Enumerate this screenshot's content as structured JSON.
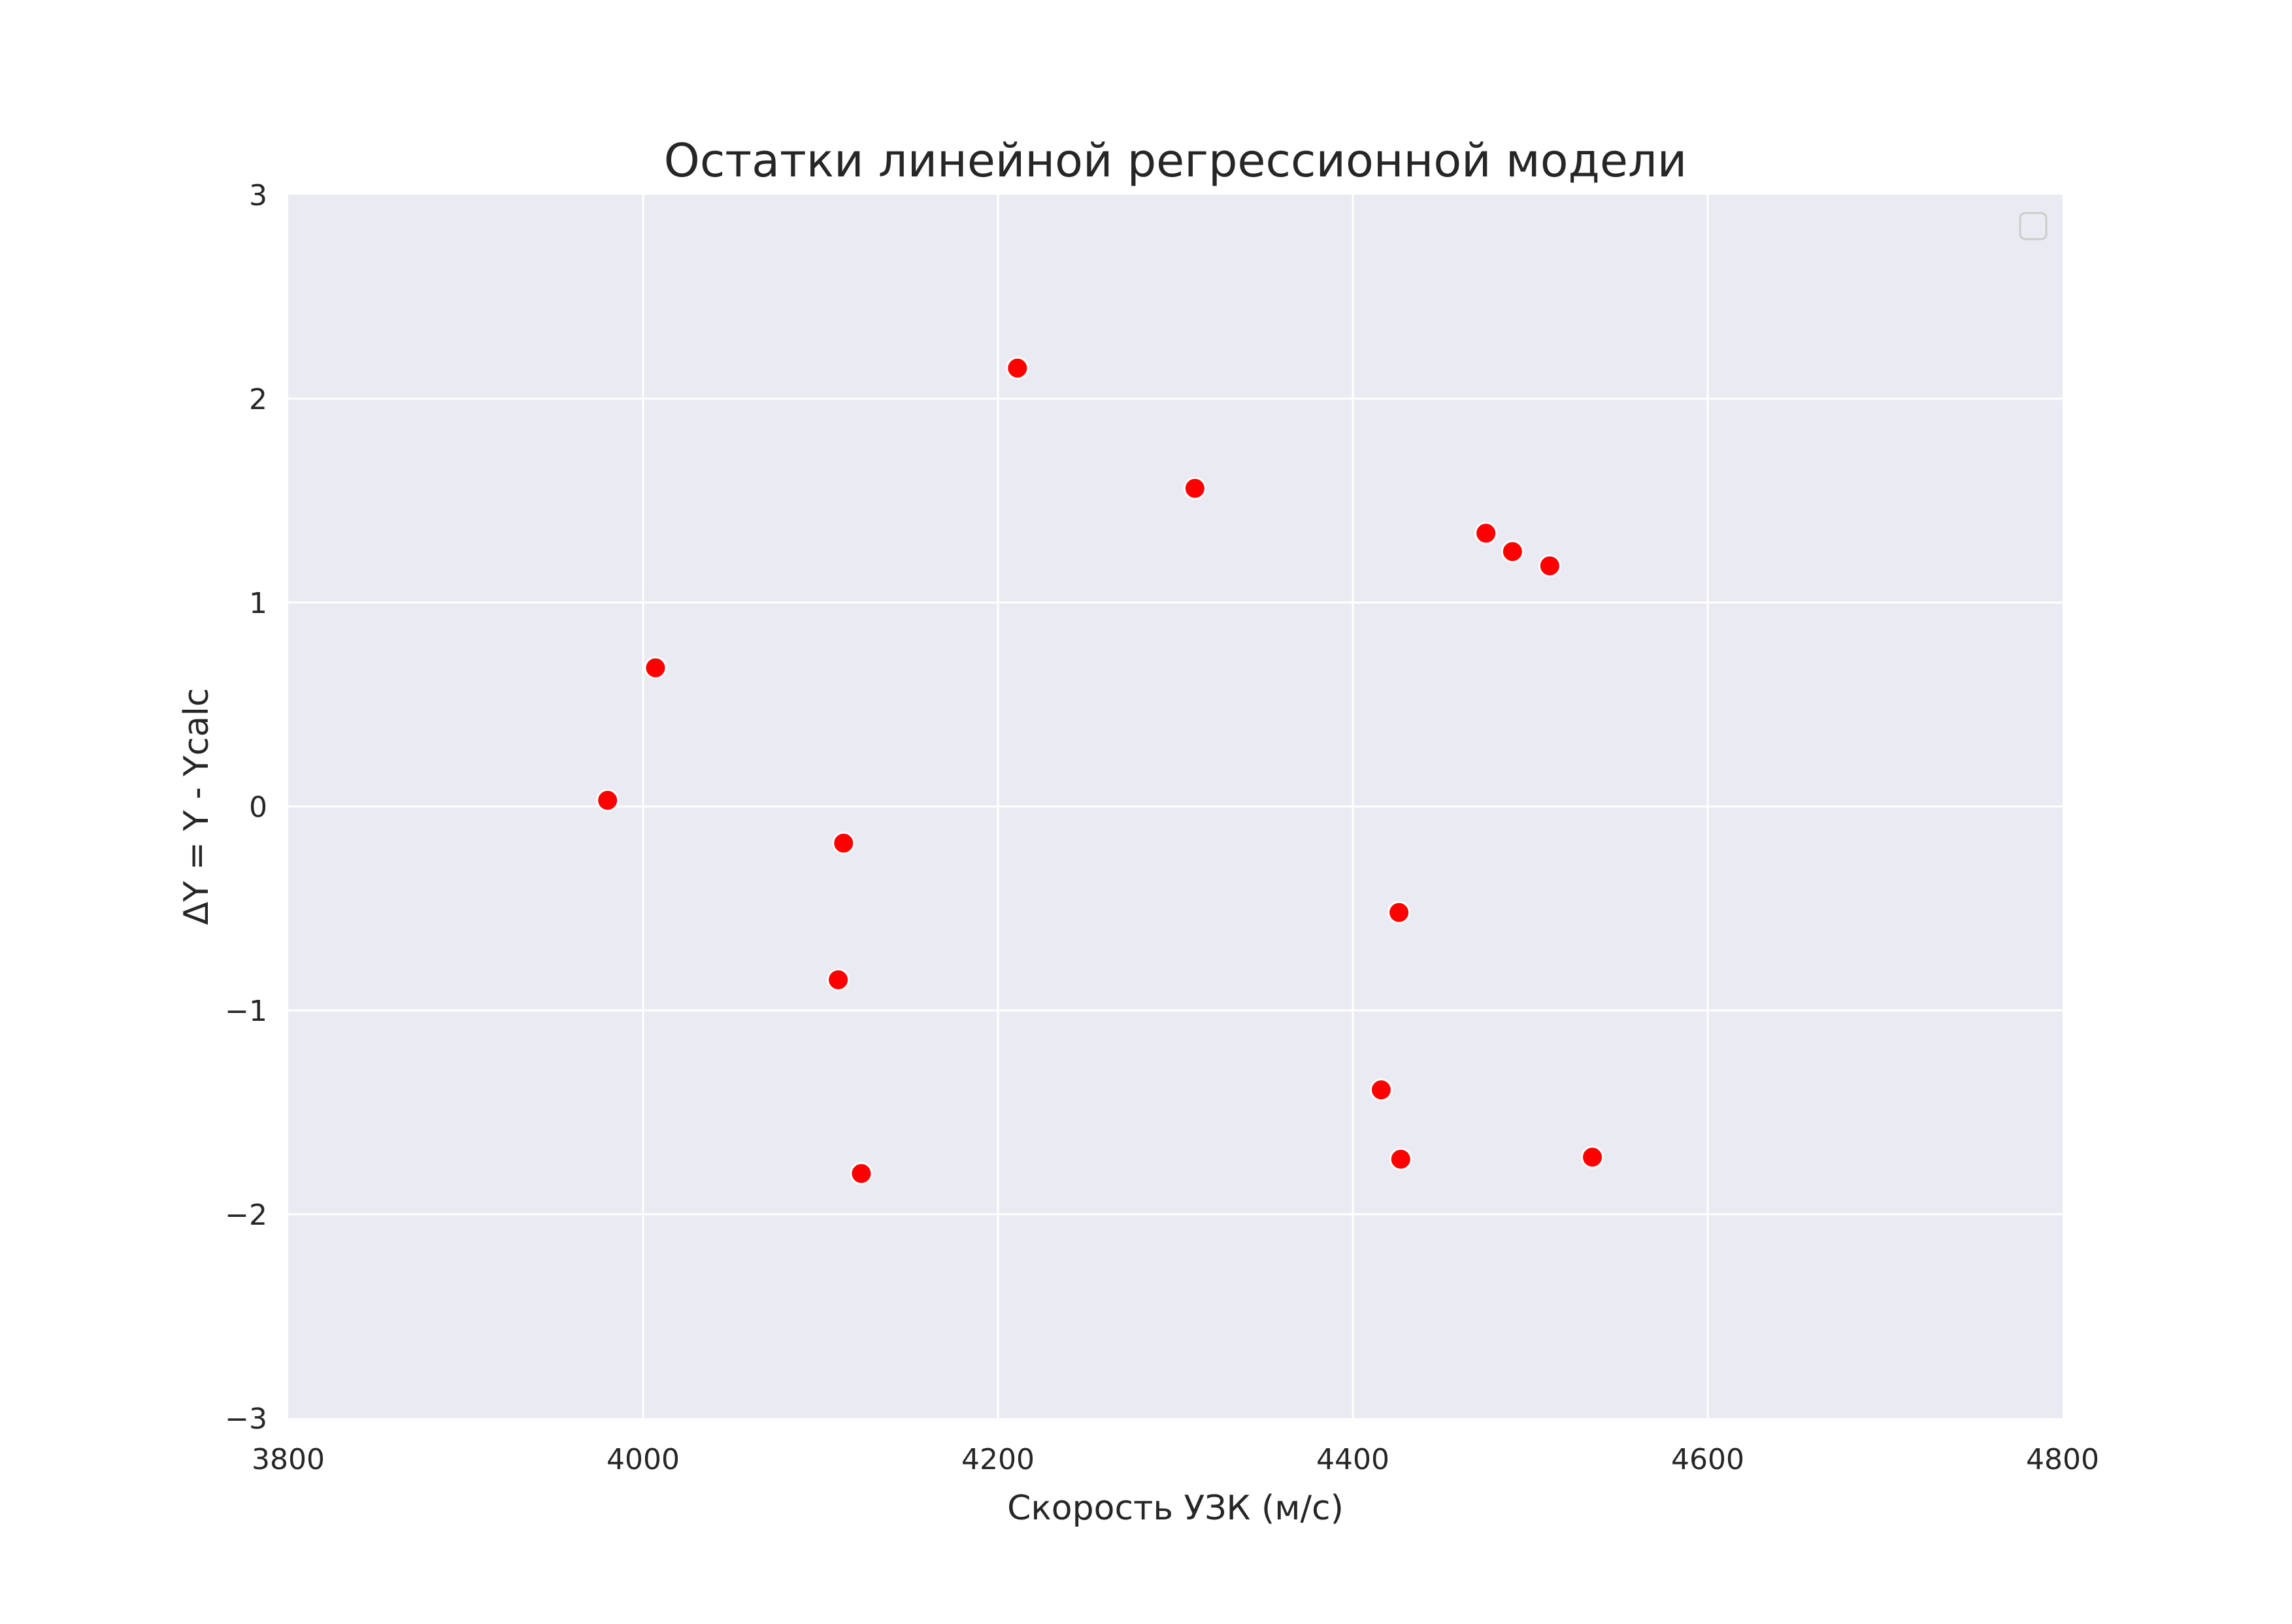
{
  "chart_data": {
    "type": "scatter",
    "title": "Остатки линейной регрессионной модели",
    "xlabel": "Скорость УЗК (м/с)",
    "ylabel": "ΔY = Y - Ycalc",
    "xlim": [
      3800,
      4800
    ],
    "ylim": [
      -3,
      3
    ],
    "xticks": [
      3800,
      4000,
      4200,
      4400,
      4600,
      4800
    ],
    "yticks": [
      -3,
      -2,
      -1,
      0,
      1,
      2,
      3
    ],
    "xtick_labels": [
      "3800",
      "4000",
      "4200",
      "4400",
      "4600",
      "4800"
    ],
    "ytick_labels": [
      "−3",
      "−2",
      "−1",
      "0",
      "1",
      "2",
      "3"
    ],
    "grid": true,
    "legend": "top-right (empty)",
    "series": [
      {
        "color": "#ff0000",
        "points": [
          {
            "x": 3980,
            "y": 0.03
          },
          {
            "x": 4007,
            "y": 0.68
          },
          {
            "x": 4110,
            "y": -0.85
          },
          {
            "x": 4113,
            "y": -0.18
          },
          {
            "x": 4123,
            "y": -1.8
          },
          {
            "x": 4211,
            "y": 2.15
          },
          {
            "x": 4311,
            "y": 1.56
          },
          {
            "x": 4416,
            "y": -1.39
          },
          {
            "x": 4426,
            "y": -0.52
          },
          {
            "x": 4427,
            "y": -1.73
          },
          {
            "x": 4475,
            "y": 1.34
          },
          {
            "x": 4490,
            "y": 1.25
          },
          {
            "x": 4511,
            "y": 1.18
          },
          {
            "x": 4535,
            "y": -1.72
          }
        ]
      }
    ],
    "colors": {
      "plot_background": "#eaeaf2",
      "grid": "#ffffff",
      "marker": "#ff0000"
    }
  }
}
